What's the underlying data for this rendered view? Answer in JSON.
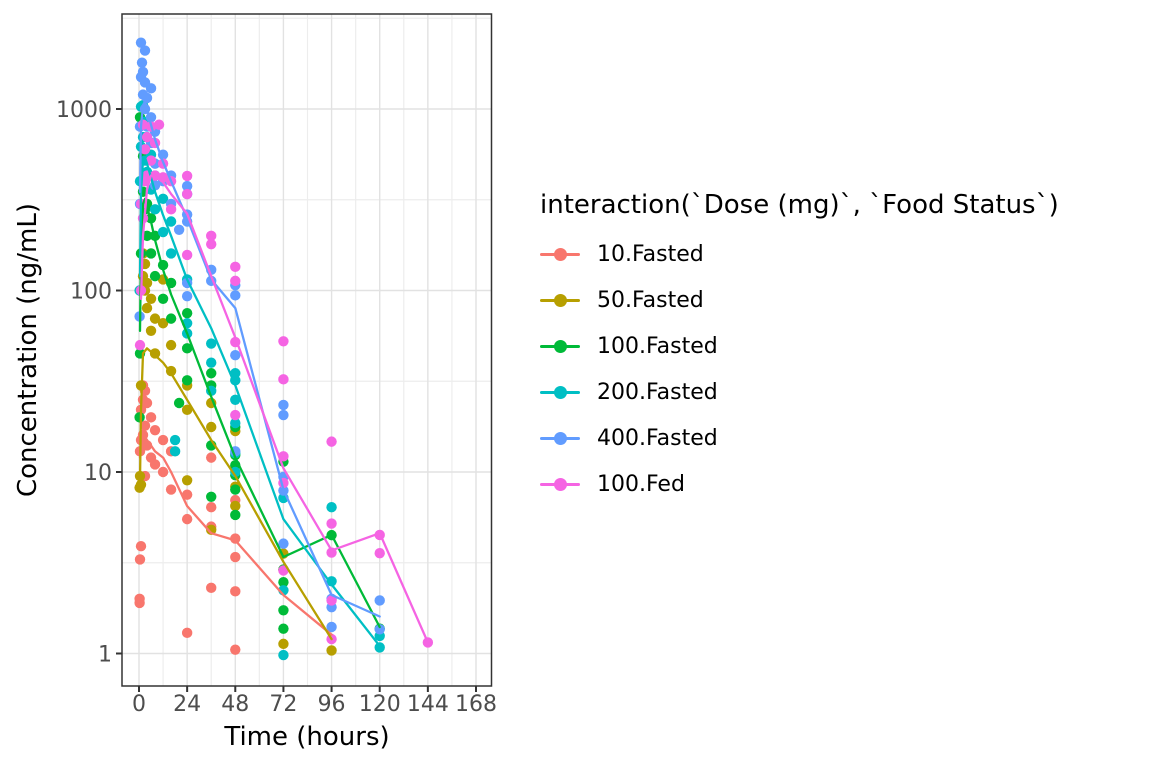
{
  "chart_data": {
    "type": "scatter",
    "title": "",
    "xlabel": "Time (hours)",
    "ylabel": "Concentration (ng/mL)",
    "x_ticks": [
      0,
      24,
      48,
      72,
      96,
      120,
      144,
      168
    ],
    "y_ticks": [
      1,
      10,
      100,
      1000
    ],
    "y_scale": "log10",
    "x_range_hours": [
      -8.5,
      176.5
    ],
    "y_range_log10": [
      -0.18,
      3.53
    ],
    "grid": "major+minor",
    "legend_position": "right",
    "legend_title": "interaction(`Dose (mg)`, `Food Status`)",
    "series": [
      {
        "name": "10.Fasted",
        "color": "#F8766D",
        "points": [
          [
            0.3,
            1.9
          ],
          [
            0.3,
            2.0
          ],
          [
            0.5,
            3.3
          ],
          [
            0.5,
            13
          ],
          [
            1,
            3.9
          ],
          [
            1,
            15
          ],
          [
            1,
            22
          ],
          [
            2,
            16
          ],
          [
            2,
            25
          ],
          [
            2,
            30
          ],
          [
            3,
            9.5
          ],
          [
            3,
            18
          ],
          [
            3,
            28
          ],
          [
            4,
            14
          ],
          [
            4,
            24
          ],
          [
            6,
            12
          ],
          [
            6,
            20
          ],
          [
            8,
            11
          ],
          [
            8,
            17
          ],
          [
            12,
            10
          ],
          [
            12,
            15
          ],
          [
            16,
            8
          ],
          [
            16,
            13
          ],
          [
            24,
            5.5
          ],
          [
            24,
            7.5
          ],
          [
            24,
            1.3
          ],
          [
            36,
            12
          ],
          [
            36,
            6.4
          ],
          [
            36,
            5.0
          ],
          [
            36,
            2.3
          ],
          [
            48,
            7.0
          ],
          [
            48,
            4.3
          ],
          [
            48,
            3.4
          ],
          [
            48,
            2.2
          ],
          [
            48,
            1.05
          ],
          [
            72,
            2.9
          ]
        ],
        "line": [
          [
            0.5,
            12
          ],
          [
            1,
            14
          ],
          [
            2,
            15.5
          ],
          [
            3,
            15.5
          ],
          [
            4,
            15
          ],
          [
            6,
            14
          ],
          [
            8,
            13
          ],
          [
            12,
            12
          ],
          [
            16,
            10
          ],
          [
            24,
            6.5
          ],
          [
            36,
            4.6
          ],
          [
            48,
            4.2
          ],
          [
            72,
            2.1
          ],
          [
            96,
            1.27
          ]
        ]
      },
      {
        "name": "50.Fasted",
        "color": "#B79F00",
        "points": [
          [
            0.3,
            8.2
          ],
          [
            0.5,
            9.5
          ],
          [
            1,
            8.5
          ],
          [
            1,
            30
          ],
          [
            2,
            120
          ],
          [
            2,
            160
          ],
          [
            3,
            100
          ],
          [
            3,
            140
          ],
          [
            4,
            80
          ],
          [
            4,
            110
          ],
          [
            6,
            60
          ],
          [
            6,
            90
          ],
          [
            8,
            45
          ],
          [
            8,
            70
          ],
          [
            12,
            66
          ],
          [
            12,
            115
          ],
          [
            16,
            36
          ],
          [
            16,
            50
          ],
          [
            24,
            9
          ],
          [
            24,
            22
          ],
          [
            24,
            30
          ],
          [
            36,
            4.8
          ],
          [
            36,
            17.7
          ],
          [
            36,
            24
          ],
          [
            48,
            6.5
          ],
          [
            48,
            8.3
          ],
          [
            48,
            16.8
          ],
          [
            72,
            1.13
          ],
          [
            72,
            3.55
          ],
          [
            96,
            1.04
          ]
        ],
        "line": [
          [
            0.5,
            9
          ],
          [
            1,
            22
          ],
          [
            2,
            45
          ],
          [
            4,
            48
          ],
          [
            6,
            46
          ],
          [
            8,
            44
          ],
          [
            12,
            40
          ],
          [
            16,
            35
          ],
          [
            24,
            25
          ],
          [
            36,
            15
          ],
          [
            48,
            9.5
          ],
          [
            72,
            3.2
          ],
          [
            96,
            1.2
          ]
        ]
      },
      {
        "name": "100.Fasted",
        "color": "#00BA38",
        "points": [
          [
            0.3,
            20
          ],
          [
            0.5,
            45
          ],
          [
            0.5,
            900
          ],
          [
            1,
            160
          ],
          [
            1,
            300
          ],
          [
            2,
            350
          ],
          [
            2,
            550
          ],
          [
            3,
            280
          ],
          [
            3,
            420
          ],
          [
            4,
            200
          ],
          [
            4,
            300
          ],
          [
            6,
            160
          ],
          [
            6,
            250
          ],
          [
            8,
            120
          ],
          [
            8,
            200
          ],
          [
            12,
            90
          ],
          [
            12,
            138
          ],
          [
            16,
            70
          ],
          [
            16,
            110
          ],
          [
            20,
            24
          ],
          [
            24,
            32
          ],
          [
            24,
            48
          ],
          [
            24,
            75
          ],
          [
            36,
            35
          ],
          [
            36,
            30
          ],
          [
            36,
            14
          ],
          [
            36,
            7.3
          ],
          [
            48,
            17.7
          ],
          [
            48,
            12.4
          ],
          [
            48,
            10.9
          ],
          [
            48,
            9.6
          ],
          [
            48,
            8.0
          ],
          [
            48,
            5.8
          ],
          [
            72,
            11.4
          ],
          [
            72,
            2.9
          ],
          [
            72,
            2.47
          ],
          [
            72,
            1.73
          ],
          [
            72,
            1.37
          ],
          [
            96,
            4.49
          ],
          [
            120,
            1.37
          ]
        ],
        "line": [
          [
            0.5,
            60
          ],
          [
            1,
            160
          ],
          [
            2,
            300
          ],
          [
            3,
            320
          ],
          [
            4,
            290
          ],
          [
            6,
            240
          ],
          [
            8,
            190
          ],
          [
            12,
            130
          ],
          [
            16,
            95
          ],
          [
            24,
            58
          ],
          [
            36,
            26
          ],
          [
            48,
            12
          ],
          [
            72,
            3.4
          ],
          [
            96,
            4.5
          ],
          [
            120,
            1.4
          ]
        ]
      },
      {
        "name": "200.Fasted",
        "color": "#00BFC4",
        "points": [
          [
            0.3,
            100
          ],
          [
            0.5,
            400
          ],
          [
            1,
            620
          ],
          [
            1,
            1030
          ],
          [
            2,
            700
          ],
          [
            2,
            1050
          ],
          [
            3,
            520
          ],
          [
            3,
            850
          ],
          [
            4,
            450
          ],
          [
            4,
            700
          ],
          [
            6,
            360
          ],
          [
            6,
            560
          ],
          [
            8,
            280
          ],
          [
            8,
            430
          ],
          [
            12,
            210
          ],
          [
            12,
            320
          ],
          [
            16,
            160
          ],
          [
            16,
            240
          ],
          [
            18,
            15
          ],
          [
            18,
            13
          ],
          [
            24,
            115
          ],
          [
            24,
            66
          ],
          [
            24,
            58
          ],
          [
            36,
            51
          ],
          [
            36,
            40
          ],
          [
            36,
            28
          ],
          [
            48,
            35
          ],
          [
            48,
            32
          ],
          [
            48,
            25
          ],
          [
            48,
            18.6
          ],
          [
            48,
            12.7
          ],
          [
            48,
            10
          ],
          [
            72,
            7.2
          ],
          [
            72,
            2.23
          ],
          [
            72,
            0.98
          ],
          [
            96,
            6.4
          ],
          [
            96,
            2.5
          ],
          [
            120,
            1.25
          ],
          [
            120,
            1.08
          ]
        ],
        "line": [
          [
            0.5,
            120
          ],
          [
            1,
            350
          ],
          [
            2,
            520
          ],
          [
            3,
            540
          ],
          [
            4,
            500
          ],
          [
            6,
            420
          ],
          [
            8,
            350
          ],
          [
            12,
            260
          ],
          [
            16,
            200
          ],
          [
            24,
            115
          ],
          [
            36,
            62
          ],
          [
            48,
            30
          ],
          [
            72,
            5.5
          ],
          [
            96,
            2.4
          ],
          [
            120,
            1.1
          ]
        ]
      },
      {
        "name": "400.Fasted",
        "color": "#619CFF",
        "points": [
          [
            0.3,
            72
          ],
          [
            0.5,
            300
          ],
          [
            0.5,
            800
          ],
          [
            1,
            1500
          ],
          [
            1,
            2320
          ],
          [
            1.5,
            1800
          ],
          [
            2,
            1200
          ],
          [
            2,
            1600
          ],
          [
            3,
            1000
          ],
          [
            3,
            1400
          ],
          [
            3,
            2100
          ],
          [
            4,
            800
          ],
          [
            4,
            1150
          ],
          [
            6,
            650
          ],
          [
            6,
            900
          ],
          [
            6,
            1300
          ],
          [
            8,
            380
          ],
          [
            8,
            500
          ],
          [
            8,
            750
          ],
          [
            12,
            400
          ],
          [
            12,
            560
          ],
          [
            16,
            300
          ],
          [
            16,
            430
          ],
          [
            20,
            216
          ],
          [
            24,
            376
          ],
          [
            24,
            340
          ],
          [
            24,
            262
          ],
          [
            24,
            240
          ],
          [
            24,
            110
          ],
          [
            24,
            93
          ],
          [
            36,
            130
          ],
          [
            36,
            113
          ],
          [
            48,
            107
          ],
          [
            48,
            94
          ],
          [
            48,
            44
          ],
          [
            48,
            13
          ],
          [
            72,
            23.4
          ],
          [
            72,
            20.6
          ],
          [
            72,
            9.4
          ],
          [
            72,
            7.9
          ],
          [
            72,
            4.03
          ],
          [
            96,
            2.0
          ],
          [
            96,
            1.8
          ],
          [
            96,
            1.4
          ],
          [
            120,
            1.96
          ],
          [
            120,
            1.36
          ]
        ],
        "line": [
          [
            0.5,
            350
          ],
          [
            1,
            800
          ],
          [
            2,
            1050
          ],
          [
            3,
            1100
          ],
          [
            4,
            1000
          ],
          [
            6,
            820
          ],
          [
            8,
            680
          ],
          [
            12,
            510
          ],
          [
            16,
            400
          ],
          [
            24,
            250
          ],
          [
            36,
            115
          ],
          [
            48,
            80
          ],
          [
            72,
            8
          ],
          [
            96,
            2.1
          ],
          [
            120,
            1.6
          ]
        ]
      },
      {
        "name": "100.Fed",
        "color": "#F564E3",
        "points": [
          [
            0.5,
            50
          ],
          [
            1,
            100
          ],
          [
            1,
            300
          ],
          [
            2,
            250
          ],
          [
            2,
            820
          ],
          [
            3,
            400
          ],
          [
            3,
            600
          ],
          [
            4,
            430
          ],
          [
            4,
            700
          ],
          [
            6,
            520
          ],
          [
            6,
            800
          ],
          [
            8,
            430
          ],
          [
            8,
            650
          ],
          [
            10,
            820
          ],
          [
            12,
            420
          ],
          [
            12,
            500
          ],
          [
            16,
            280
          ],
          [
            16,
            400
          ],
          [
            24,
            428
          ],
          [
            24,
            340
          ],
          [
            24,
            157
          ],
          [
            36,
            200
          ],
          [
            36,
            180
          ],
          [
            48,
            135
          ],
          [
            48,
            113
          ],
          [
            48,
            52
          ],
          [
            48,
            20.6
          ],
          [
            72,
            52.5
          ],
          [
            72,
            32.4
          ],
          [
            72,
            12.2
          ],
          [
            72,
            8.7
          ],
          [
            72,
            2.87
          ],
          [
            96,
            14.7
          ],
          [
            96,
            5.2
          ],
          [
            96,
            3.6
          ],
          [
            96,
            1.96
          ],
          [
            96,
            1.2
          ],
          [
            120,
            4.5
          ],
          [
            120,
            3.57
          ],
          [
            144,
            1.15
          ]
        ],
        "line": [
          [
            1,
            90
          ],
          [
            2,
            200
          ],
          [
            4,
            360
          ],
          [
            6,
            430
          ],
          [
            8,
            430
          ],
          [
            12,
            395
          ],
          [
            16,
            340
          ],
          [
            24,
            265
          ],
          [
            36,
            120
          ],
          [
            48,
            55
          ],
          [
            72,
            10.5
          ],
          [
            96,
            3.7
          ],
          [
            120,
            4.6
          ],
          [
            144,
            1.15
          ]
        ]
      }
    ]
  }
}
